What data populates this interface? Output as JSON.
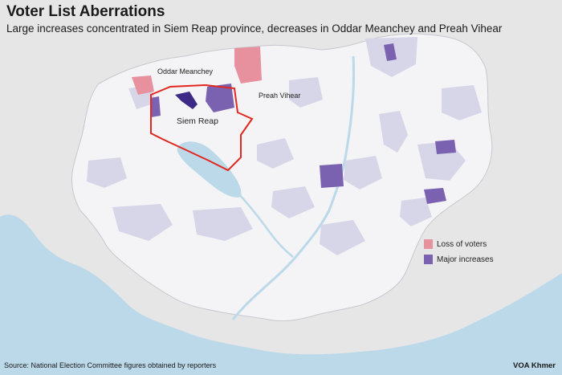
{
  "header": {
    "title": "Voter List Aberrations",
    "subtitle": "Large increases concentrated in Siem Reap province, decreases in Oddar Meanchey and Preah Vihear"
  },
  "map": {
    "labels": {
      "oddar_meanchey": "Oddar Meanchey",
      "preah_vihear": "Preah Vihear",
      "siem_reap": "Siem Reap"
    },
    "colors": {
      "land": "#f4f4f6",
      "outside_land": "#e6e6e6",
      "water": "#bcd9ea",
      "minor_change": "#d6d6e8",
      "loss": "#e7909e",
      "increase": "#7a62b0",
      "strong_increase": "#3d2a86",
      "highlight_outline": "#e2271e"
    }
  },
  "legend": {
    "loss_label": "Loss of voters",
    "increase_label": "Major increases"
  },
  "footer": {
    "source": "Source: National Election Committee figures obtained by reporters",
    "credit": "VOA Khmer"
  }
}
